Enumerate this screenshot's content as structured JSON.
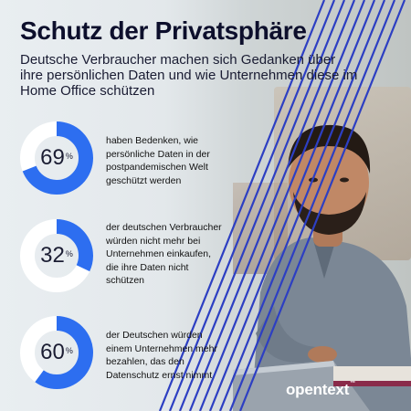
{
  "header": {
    "title": "Schutz der Privatsphäre",
    "subtitle": "Deutsche Verbraucher machen sich Gedanken über ihre persönlichen Daten und wie Unternehmen diese im Home Office schützen"
  },
  "chart_data": {
    "type": "pie",
    "colors": {
      "filled": "#2d6ef0",
      "remaining": "#ffffff"
    },
    "stats": [
      {
        "value": 69,
        "value_label": "69",
        "unit": "%",
        "text": "haben Bedenken, wie persönliche Daten in der postpandemischen Welt geschützt werden"
      },
      {
        "value": 32,
        "value_label": "32",
        "unit": "%",
        "text": "der deutschen Verbraucher würden nicht mehr bei Unternehmen einkaufen, die ihre Daten nicht schützen"
      },
      {
        "value": 60,
        "value_label": "60",
        "unit": "%",
        "text": "der Deutschen würden einem Unternehmen mehr bezahlen, das den Datenschutz ernst nimmt"
      }
    ]
  },
  "logo": {
    "text": "opentext",
    "tm": "™"
  },
  "colors": {
    "title": "#0d0f2c",
    "accent": "#2d6ef0",
    "stripes": "#2d3fc2"
  }
}
